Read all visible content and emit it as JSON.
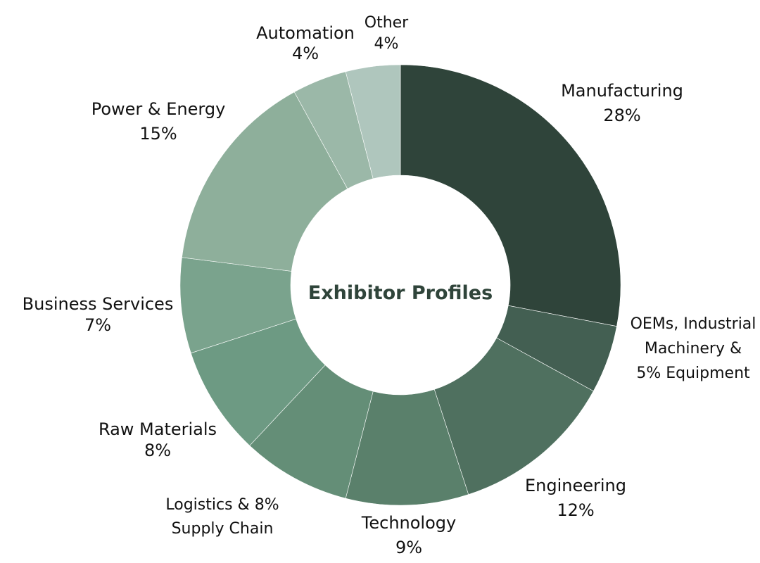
{
  "chart_data": {
    "type": "pie",
    "title": "Exhibitor Profiles",
    "slices": [
      {
        "name": "Manufacturing",
        "value": 28,
        "label": [
          "Manufacturing",
          "28%"
        ],
        "color": "#2f443a"
      },
      {
        "name": "OEMs, Industrial Machinery & Equipment",
        "value": 5,
        "label": [
          "OEMs, Industrial",
          "Machinery &",
          "5%  Equipment"
        ],
        "color": "#435f52"
      },
      {
        "name": "Engineering",
        "value": 12,
        "label": [
          "Engineering",
          "12%"
        ],
        "color": "#4f705f"
      },
      {
        "name": "Technology",
        "value": 9,
        "label": [
          "Technology",
          "9%"
        ],
        "color": "#5a806b"
      },
      {
        "name": "Logistics & Supply Chain",
        "value": 8,
        "label": [
          "Logistics &  8%",
          "Supply Chain"
        ],
        "color": "#648e77"
      },
      {
        "name": "Raw Materials",
        "value": 8,
        "label": [
          "Raw Materials",
          "8%"
        ],
        "color": "#6d9a83"
      },
      {
        "name": "Business Services",
        "value": 7,
        "label": [
          "Business Services",
          "7%"
        ],
        "color": "#7aa38d"
      },
      {
        "name": "Power & Energy",
        "value": 15,
        "label": [
          "Power & Energy",
          "15%"
        ],
        "color": "#8eaf9b"
      },
      {
        "name": "Automation",
        "value": 4,
        "label": [
          "Automation",
          "4%"
        ],
        "color": "#9bb8a8"
      },
      {
        "name": "Other",
        "value": 4,
        "label": [
          "Other",
          "4%"
        ],
        "color": "#afc6bd"
      }
    ]
  }
}
